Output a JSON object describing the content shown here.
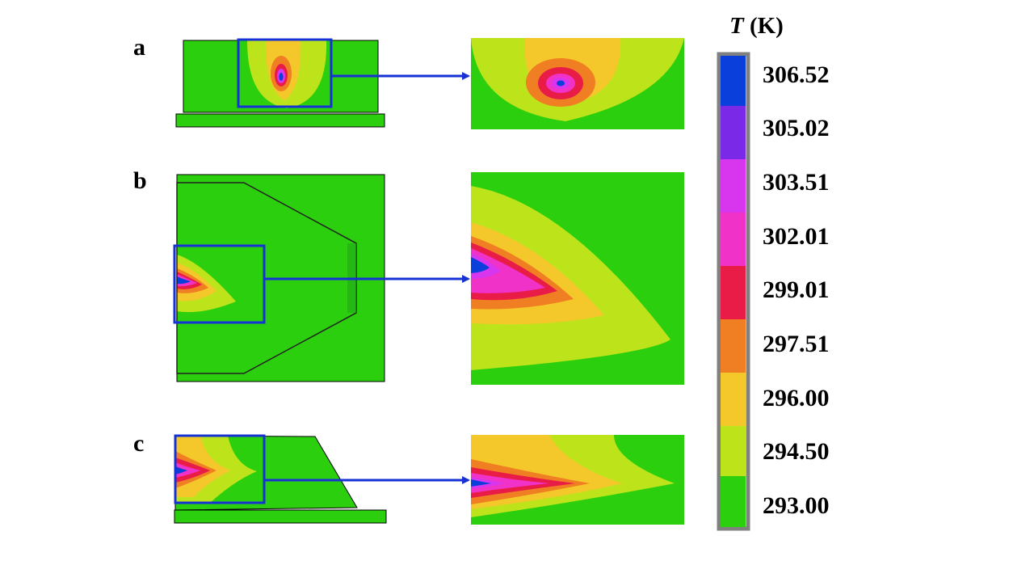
{
  "panels": [
    {
      "id": "a",
      "label": "a"
    },
    {
      "id": "b",
      "label": "b"
    },
    {
      "id": "c",
      "label": "c"
    }
  ],
  "colorbar": {
    "symbol": "T",
    "unit": "(K)",
    "ticks": [
      "306.52",
      "305.02",
      "303.51",
      "302.01",
      "299.01",
      "297.51",
      "296.00",
      "294.50",
      "293.00"
    ],
    "colors": [
      "#0a3fdc",
      "#7a2ae6",
      "#d836ee",
      "#f032c8",
      "#e81c46",
      "#f07e22",
      "#f4c82a",
      "#bde41a",
      "#2ccf0e"
    ]
  },
  "colors": {
    "base_green": "#2ccf0e",
    "highlight_box": "#1632d6"
  }
}
